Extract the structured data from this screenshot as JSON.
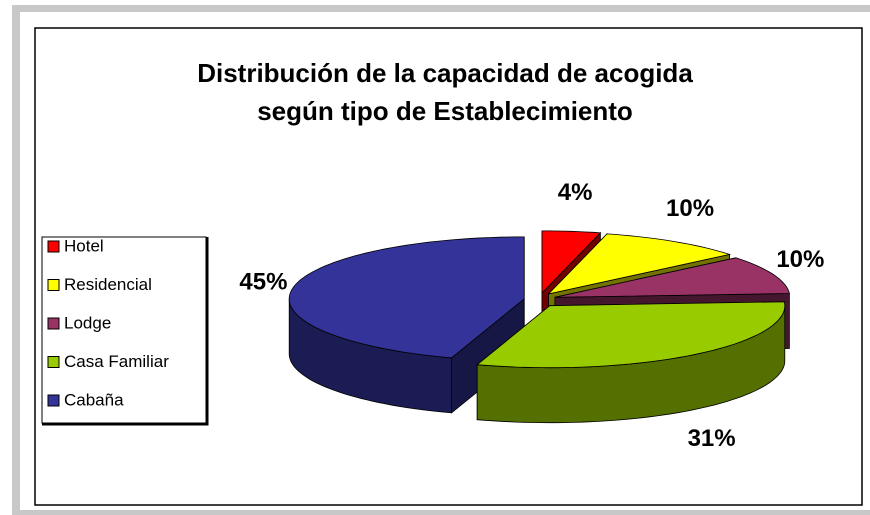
{
  "chart_data": {
    "type": "pie",
    "title": "Distribución de la capacidad de acogida",
    "subtitle": "según tipo de Establecimiento",
    "categories": [
      "Hotel",
      "Residencial",
      "Lodge",
      "Casa Familiar",
      "Cabaña"
    ],
    "values": [
      4,
      10,
      10,
      31,
      45
    ],
    "value_labels": [
      "4%",
      "10%",
      "10%",
      "31%",
      "45%"
    ],
    "colors": [
      "#ff0000",
      "#ffff00",
      "#993366",
      "#99cc00",
      "#333399"
    ],
    "legend": "left"
  }
}
